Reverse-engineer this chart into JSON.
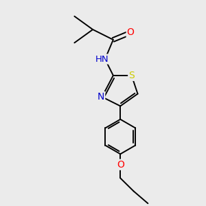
{
  "bg_color": "#ebebeb",
  "atom_colors": {
    "C": "#000000",
    "N": "#0000cc",
    "O": "#ff0000",
    "S": "#cccc00",
    "H": "#008888"
  },
  "bond_color": "#000000",
  "bond_width": 1.4,
  "figsize": [
    3.0,
    3.0
  ],
  "dpi": 100
}
